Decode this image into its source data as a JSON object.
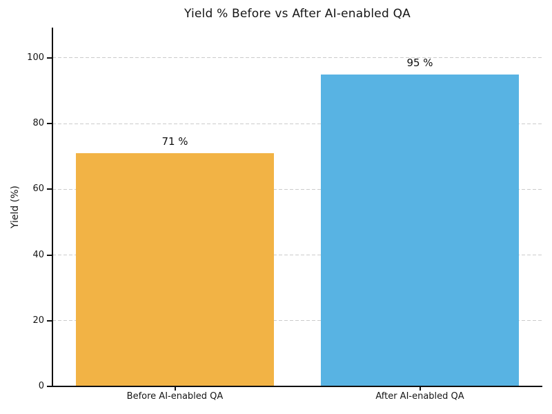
{
  "chart_data": {
    "type": "bar",
    "title": "Yield % Before vs After AI-enabled QA",
    "ylabel": "Yield (%)",
    "xlabel": "",
    "categories": [
      "Before AI-enabled QA",
      "After AI-enabled QA"
    ],
    "values": [
      71,
      95
    ],
    "value_labels": [
      "71 %",
      "95 %"
    ],
    "bar_colors": [
      "#F2B345",
      "#58B3E3"
    ],
    "bar_names": [
      "bar-before-ai-qa",
      "bar-after-ai-qa"
    ],
    "yticks": [
      0,
      20,
      40,
      60,
      80,
      100
    ],
    "ylim": [
      0,
      109
    ],
    "grid": "horizontal-dashed",
    "gridline_color": "#cbcbcb",
    "axis_color": "#0f0f0f",
    "background_color": "#ffffff",
    "legend": "none"
  }
}
